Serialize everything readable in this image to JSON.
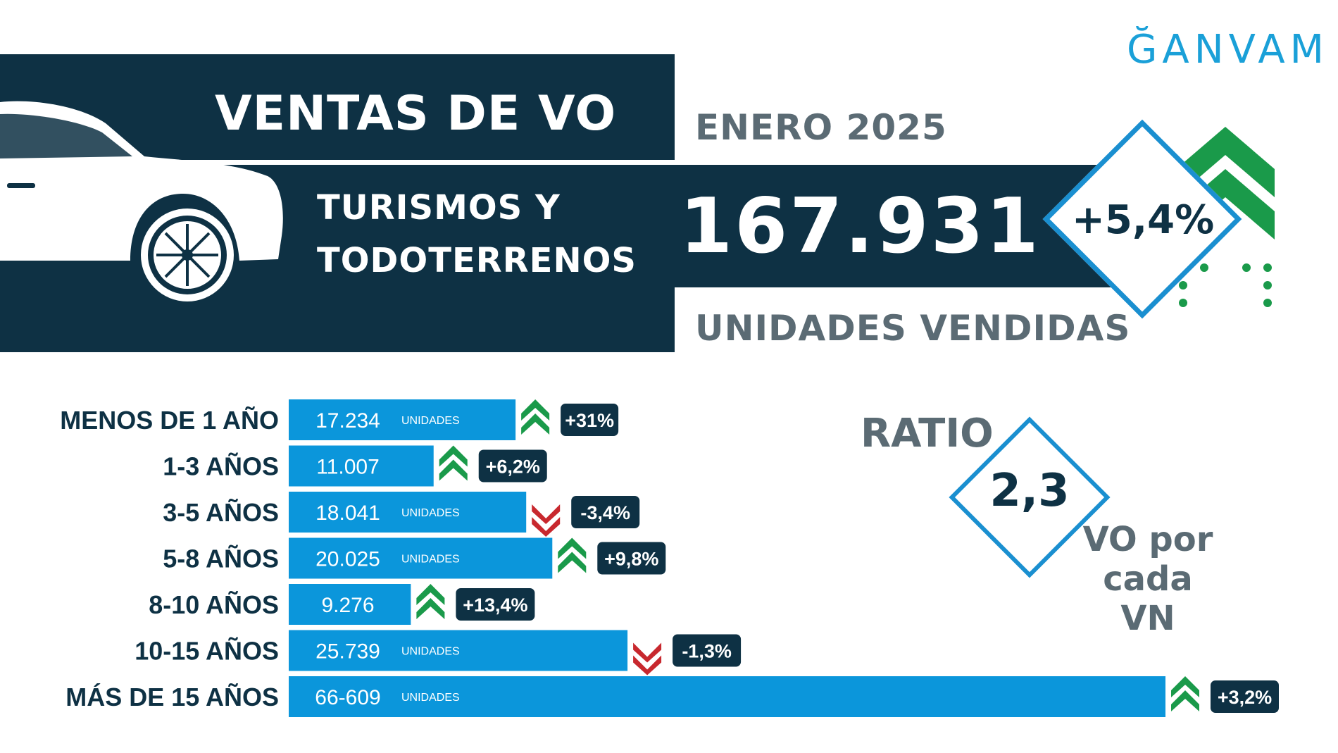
{
  "header": {
    "title": "VENTAS DE VO",
    "segment_line1": "TURISMOS Y",
    "segment_line2": "TODOTERRENOS",
    "period": "ENERO 2025",
    "total": "167.931",
    "total_label": "UNIDADES VENDIDAS",
    "total_change": "+5,4%",
    "logo": "ĞANVAM"
  },
  "ratio": {
    "label": "RATIO",
    "value": "2,3",
    "caption_line1": "VO por",
    "caption_line2": "cada VN"
  },
  "colors": {
    "navy": "#0e3144",
    "bar_blue": "#0b96db",
    "up_green": "#1a9a4a",
    "down_red": "#c8282e",
    "diamond_border": "#1a8fd0",
    "gray_text": "#5b6b74"
  },
  "chart_data": {
    "type": "bar",
    "orientation": "horizontal",
    "categories": [
      "MENOS DE 1 AÑO",
      "1-3 AÑOS",
      "3-5 AÑOS",
      "5-8 AÑOS",
      "8-10 AÑOS",
      "10-15 AÑOS",
      "MÁS DE 15 AÑOS"
    ],
    "values": [
      17234,
      11007,
      18041,
      20025,
      9276,
      25739,
      66609
    ],
    "value_labels": [
      "17.234",
      "11.007",
      "18.041",
      "20.025",
      "9.276",
      "25.739",
      "66-609"
    ],
    "unit_labels": [
      "UNIDADES",
      "",
      "UNIDADES",
      "UNIDADES",
      "",
      "UNIDADES",
      "UNIDADES"
    ],
    "changes": [
      "+31%",
      "+6,2%",
      "-3,4%",
      "+9,8%",
      "+13,4%",
      "-1,3%",
      "+3,2%"
    ],
    "change_values": [
      31,
      6.2,
      -3.4,
      9.8,
      13.4,
      -1.3,
      3.2
    ],
    "change_icons": [
      "up-arrow-icon",
      "up-arrow-icon",
      "down-arrow-icon",
      "up-arrow-icon",
      "up-arrow-icon",
      "down-arrow-icon",
      "up-arrow-icon"
    ]
  }
}
